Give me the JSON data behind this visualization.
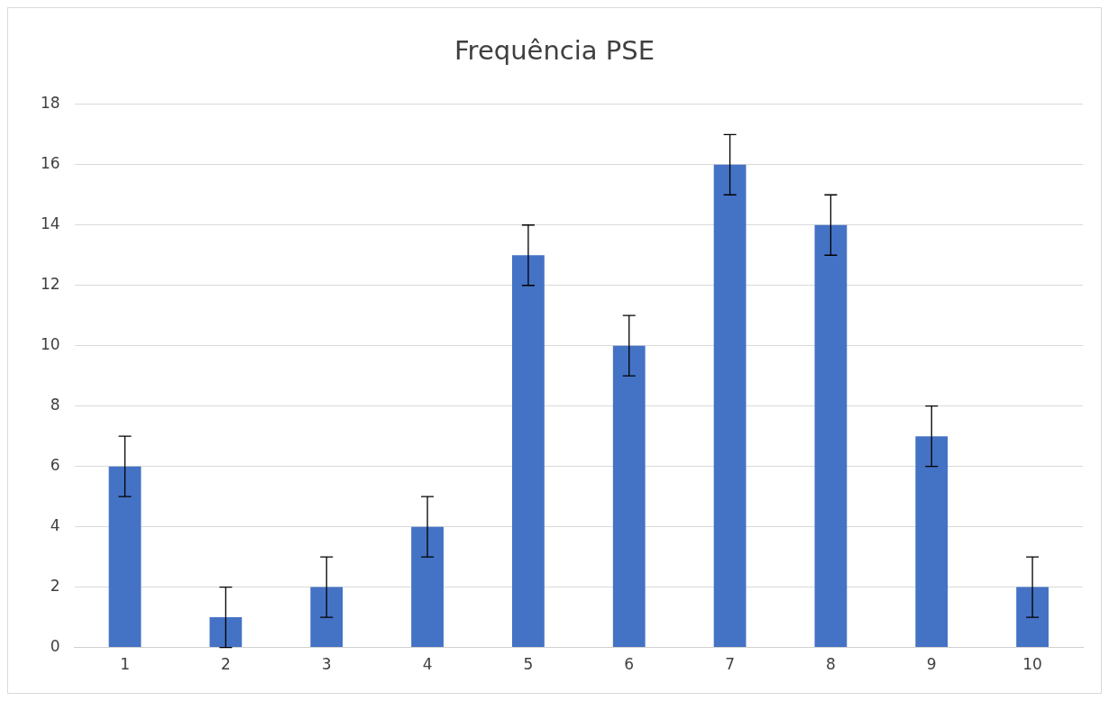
{
  "chart_data": {
    "type": "bar",
    "title": "Frequência PSE",
    "categories": [
      "1",
      "2",
      "3",
      "4",
      "5",
      "6",
      "7",
      "8",
      "9",
      "10"
    ],
    "values": [
      6,
      1,
      2,
      4,
      13,
      10,
      16,
      14,
      7,
      2
    ],
    "errors": [
      1,
      1,
      1,
      1,
      1,
      1,
      1,
      1,
      1,
      1
    ],
    "color": "#4472c4",
    "ylim": [
      0,
      18
    ],
    "yticks": [
      0,
      2,
      4,
      6,
      8,
      10,
      12,
      14,
      16,
      18
    ],
    "grid": "y",
    "legend": false
  }
}
